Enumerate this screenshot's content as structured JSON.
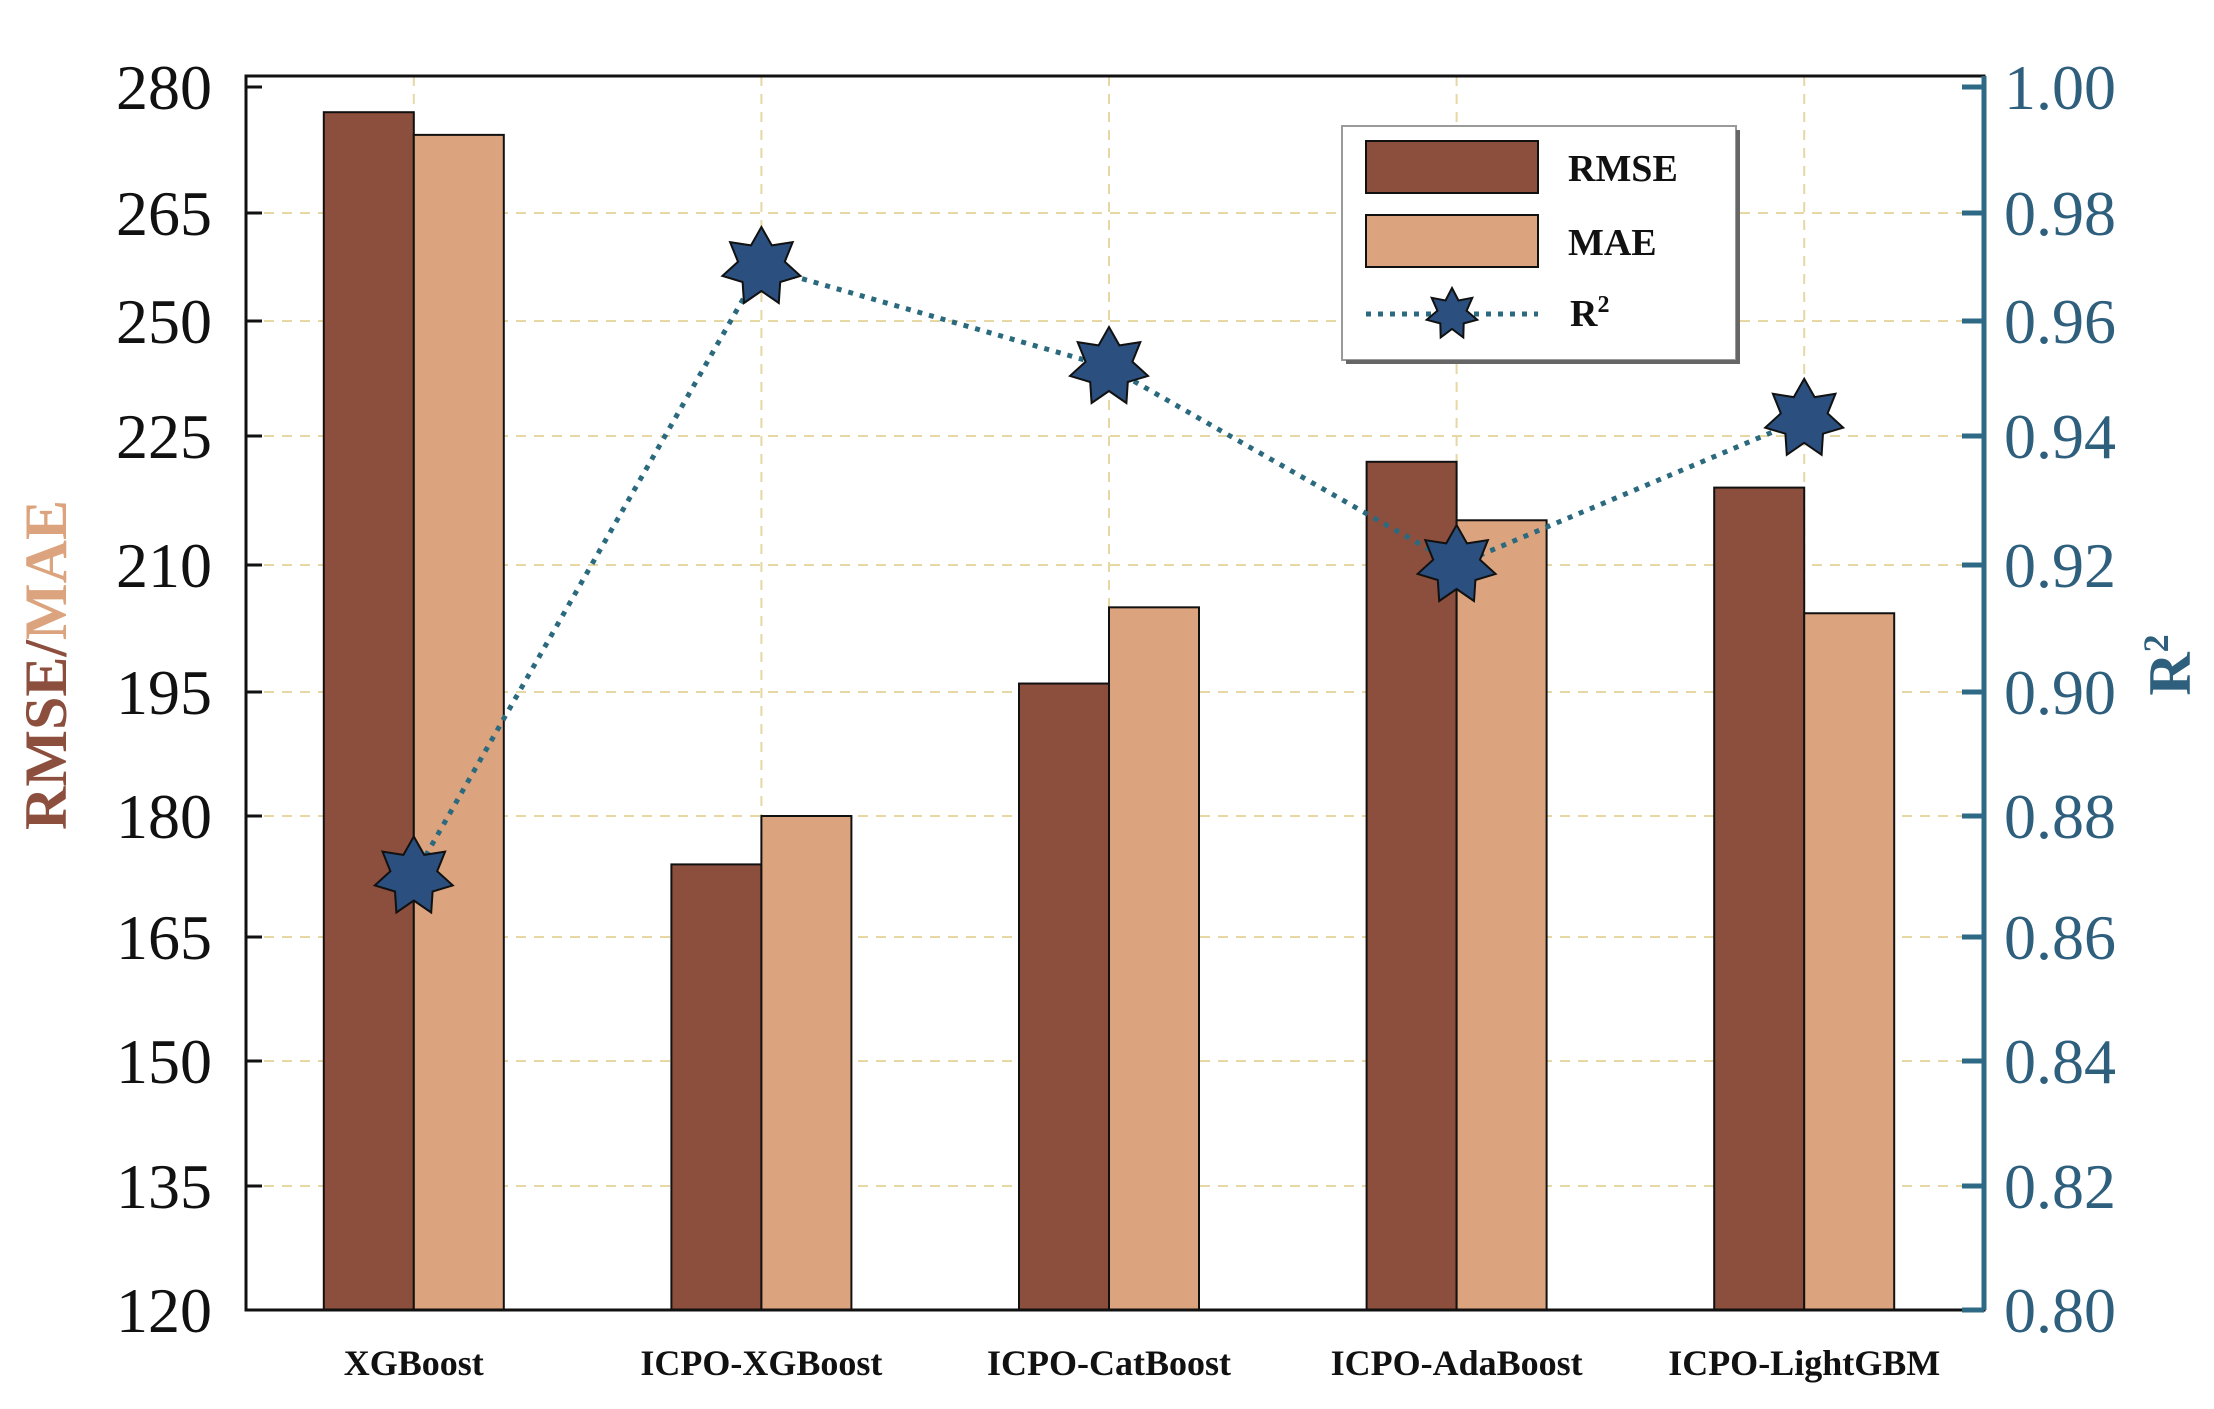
{
  "chart_data": {
    "type": "bar",
    "categories": [
      "XGBoost",
      "ICPO-XGBoost",
      "ICPO-CatBoost",
      "ICPO-AdaBoost",
      "ICPO-LightGBM"
    ],
    "series": [
      {
        "name": "RMSE",
        "axis": "left",
        "kind": "bar",
        "color": "#8c4f3d",
        "values": [
          277,
          174,
          196,
          222,
          219
        ]
      },
      {
        "name": "MAE",
        "axis": "left",
        "kind": "bar",
        "color": "#dca47e",
        "values": [
          274.3,
          180,
          205,
          215.2,
          204.3
        ]
      },
      {
        "name": "R",
        "name_sup": "2",
        "axis": "right",
        "kind": "line",
        "marker": "star",
        "line_style": "dotted",
        "color": "#2b4f7e",
        "line_color": "#2b6a7e",
        "values": [
          0.87,
          0.97,
          0.952,
          0.92,
          0.943
        ]
      }
    ],
    "y_left": {
      "title_part1": "RMSE",
      "title_sep": "/",
      "title_part2": "MAE",
      "title_color1": "#8c4f3d",
      "title_color2": "#dca47e",
      "lim": [
        120,
        280
      ],
      "ticks": [
        "120",
        "135",
        "150",
        "165",
        "180",
        "195",
        "210",
        "225",
        "250",
        "265",
        "280"
      ]
    },
    "y_right": {
      "title_base": "R",
      "title_sup": "2",
      "title_color": "#2e5f7d",
      "lim": [
        0.8,
        1.0
      ],
      "ticks": [
        "0.80",
        "0.82",
        "0.84",
        "0.86",
        "0.88",
        "0.90",
        "0.92",
        "0.94",
        "0.96",
        "0.98",
        "1.00"
      ]
    },
    "grid": true,
    "legend": {
      "position": "top-right",
      "entries": [
        "RMSE",
        "MAE",
        "R2"
      ]
    }
  }
}
